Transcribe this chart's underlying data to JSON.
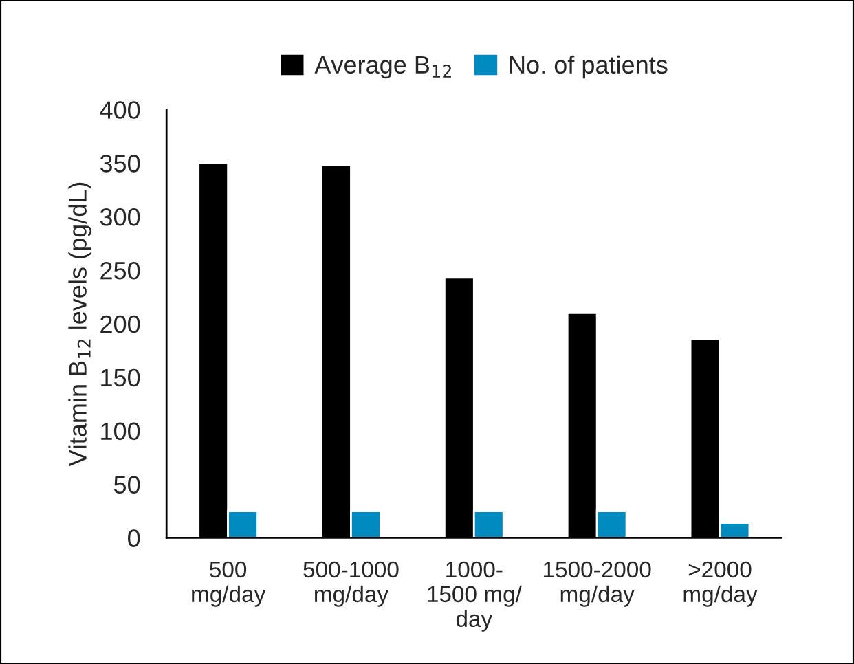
{
  "chart_data": {
    "type": "bar",
    "ylabel": "Vitamin B$_{12}$ levels (pg/dL)",
    "categories": [
      "500\nmg/day",
      "500-1000\nmg/day",
      "1000-\n1500 mg/\nday",
      "1500-2000\nmg/day",
      ">2000\nmg/day"
    ],
    "series": [
      {
        "name": "Average B$_{12}$",
        "color": "#000000",
        "values": [
          350,
          348,
          243,
          210,
          186
        ]
      },
      {
        "name": "No. of patients",
        "color": "#008bc0",
        "values": [
          25,
          25,
          25,
          25,
          14
        ]
      }
    ],
    "ylim": [
      0,
      400
    ],
    "yticks": [
      0,
      50,
      100,
      150,
      200,
      250,
      300,
      350,
      400
    ],
    "grid": false,
    "legend": "top"
  }
}
